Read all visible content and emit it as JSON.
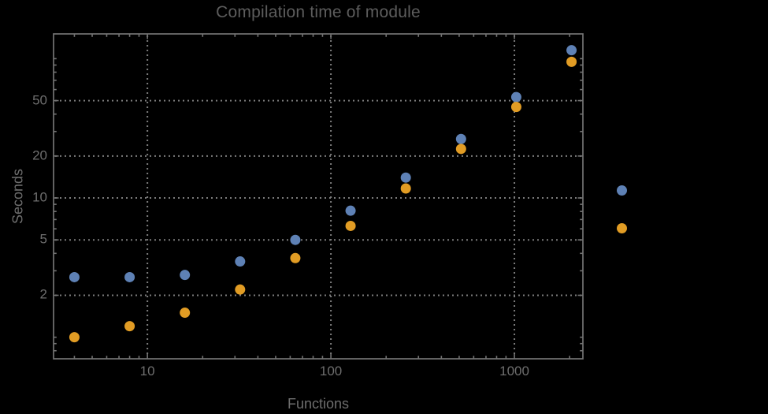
{
  "chart_data": {
    "type": "scatter",
    "title": "Compilation time of module",
    "xlabel": "Functions",
    "ylabel": "Seconds",
    "xscale": "log",
    "yscale": "log",
    "xlim": [
      3.08,
      2362
    ],
    "ylim": [
      0.7,
      150.6
    ],
    "grid": "dotted",
    "frame": true,
    "legend_position": "right-outside",
    "marker_diameter_px": 13,
    "x": [
      4,
      8,
      16,
      32,
      64,
      128,
      256,
      512,
      1024,
      2048
    ],
    "series": [
      {
        "name": "blue",
        "color": "#5e81b5",
        "values": [
          2.7,
          2.7,
          2.8,
          3.5,
          5.0,
          8.1,
          14.0,
          26.5,
          53.0,
          115.0
        ]
      },
      {
        "name": "orange",
        "color": "#e19c24",
        "values": [
          1.0,
          1.2,
          1.5,
          2.2,
          3.7,
          6.3,
          11.7,
          22.5,
          45.0,
          95.0
        ]
      }
    ],
    "x_major_ticks": [
      10,
      100,
      1000
    ],
    "x_major_labels": [
      "10",
      "100",
      "1000"
    ],
    "y_major_ticks": [
      2,
      5,
      10,
      20,
      50
    ],
    "y_major_labels": [
      "2",
      "5",
      "10",
      "20",
      "50"
    ],
    "x_gridlines": [
      10,
      100,
      1000
    ],
    "y_gridlines": [
      2,
      5,
      10,
      20,
      50
    ]
  },
  "styles": {
    "background": "#000000",
    "frame_color": "#737373",
    "grid_color": "#7c7c7c",
    "tick_label_color": "#6e6e6e",
    "title_color": "#5d5d5d"
  }
}
